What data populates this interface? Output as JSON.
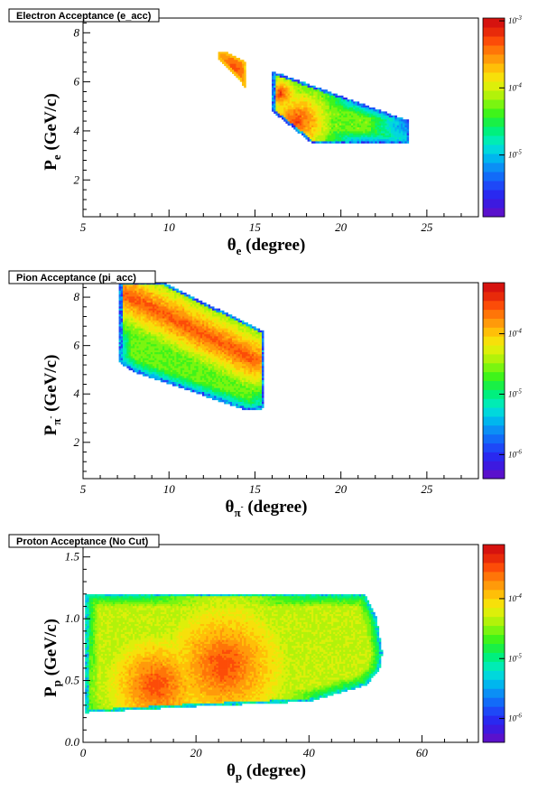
{
  "chart_data": [
    {
      "type": "heatmap",
      "title": "Electron Acceptance (e_acc)",
      "xlabel": {
        "sym": "θ",
        "sub": "e",
        "rest": " (degree)"
      },
      "ylabel": {
        "sym": "P",
        "sub": "e",
        "rest": " (GeV/c)"
      },
      "xlim": [
        5,
        28
      ],
      "ylim": [
        0.5,
        8.6
      ],
      "x_ticks": [
        {
          "v": 5,
          "label": "5"
        },
        {
          "v": 10,
          "label": "10"
        },
        {
          "v": 15,
          "label": "15"
        },
        {
          "v": 20,
          "label": "20"
        },
        {
          "v": 25,
          "label": "25"
        }
      ],
      "y_ticks": [
        {
          "v": 2,
          "label": "2"
        },
        {
          "v": 4,
          "label": "4"
        },
        {
          "v": 6,
          "label": "6"
        },
        {
          "v": 8,
          "label": "8"
        }
      ],
      "z_scale": "log",
      "zlim": [
        1.2e-06,
        0.0011
      ],
      "z_ticks": [
        {
          "v": 1e-05,
          "label": "10",
          "exp": "-5"
        },
        {
          "v": 0.0001,
          "label": "10",
          "exp": "-4"
        },
        {
          "v": 0.001,
          "label": "10",
          "exp": "-3"
        }
      ],
      "regions": [
        {
          "name": "small acceptance band",
          "polygon": [
            [
              12.8,
              7.2
            ],
            [
              13.2,
              7.25
            ],
            [
              14.5,
              6.8
            ],
            [
              14.5,
              5.7
            ],
            [
              13.8,
              6.3
            ],
            [
              12.8,
              7.0
            ]
          ],
          "peak": 0.0006,
          "floor": 0.00015,
          "hotspots": [
            {
              "x": 13.7,
              "y": 6.5,
              "r": 0.8
            }
          ]
        },
        {
          "name": "large acceptance band",
          "polygon": [
            [
              16.0,
              6.4
            ],
            [
              16.6,
              6.3
            ],
            [
              24.0,
              4.4
            ],
            [
              24.0,
              3.5
            ],
            [
              18.3,
              3.5
            ],
            [
              16.0,
              4.8
            ]
          ],
          "peak": 0.0006,
          "floor": 1.5e-06,
          "hotspots": [
            {
              "x": 17.5,
              "y": 4.4,
              "r": 2.8
            },
            {
              "x": 16.5,
              "y": 5.5,
              "r": 1.5
            }
          ],
          "fade_to": {
            "x": 24,
            "y": 4.3,
            "r": 6.5
          }
        }
      ]
    },
    {
      "type": "heatmap",
      "title": "Pion Acceptance (pi_acc)",
      "xlabel": {
        "sym": "θ",
        "sub": "π",
        "subsup": "-",
        "rest": " (degree)"
      },
      "ylabel": {
        "sym": "P",
        "sub": "π",
        "subsup": "-",
        "rest": " (GeV/c)"
      },
      "xlim": [
        5,
        28
      ],
      "ylim": [
        0.5,
        8.6
      ],
      "x_ticks": [
        {
          "v": 5,
          "label": "5"
        },
        {
          "v": 10,
          "label": "10"
        },
        {
          "v": 15,
          "label": "15"
        },
        {
          "v": 20,
          "label": "20"
        },
        {
          "v": 25,
          "label": "25"
        }
      ],
      "y_ticks": [
        {
          "v": 2,
          "label": "2"
        },
        {
          "v": 4,
          "label": "4"
        },
        {
          "v": 6,
          "label": "6"
        },
        {
          "v": 8,
          "label": "8"
        }
      ],
      "z_scale": "log",
      "zlim": [
        4e-07,
        0.0007
      ],
      "z_ticks": [
        {
          "v": 1e-06,
          "label": "10",
          "exp": "-6"
        },
        {
          "v": 1e-05,
          "label": "10",
          "exp": "-5"
        },
        {
          "v": 0.0001,
          "label": "10",
          "exp": "-4"
        }
      ],
      "regions": [
        {
          "name": "pion acceptance band",
          "polygon": [
            [
              7.1,
              8.6
            ],
            [
              9.7,
              8.6
            ],
            [
              15.5,
              6.6
            ],
            [
              15.5,
              3.4
            ],
            [
              14.6,
              3.3
            ],
            [
              8.0,
              4.9
            ],
            [
              7.1,
              5.3
            ]
          ],
          "peak": 0.0003,
          "floor": 6e-07,
          "ridge": {
            "x0": 7.5,
            "y0": 8.1,
            "x1": 15.0,
            "y1": 5.4,
            "width": 0.7
          }
        }
      ]
    },
    {
      "type": "heatmap",
      "title": "Proton Acceptance (No Cut)",
      "xlabel": {
        "sym": "θ",
        "sub": "p",
        "rest": " (degree)"
      },
      "ylabel": {
        "sym": "P",
        "sub": "p",
        "rest": " (GeV/c)"
      },
      "xlim": [
        0,
        70
      ],
      "ylim": [
        0,
        1.6
      ],
      "x_ticks": [
        {
          "v": 0,
          "label": "0"
        },
        {
          "v": 20,
          "label": "20"
        },
        {
          "v": 40,
          "label": "40"
        },
        {
          "v": 60,
          "label": "60"
        }
      ],
      "y_ticks": [
        {
          "v": 0,
          "label": "0.0"
        },
        {
          "v": 0.5,
          "label": "0.5"
        },
        {
          "v": 1.0,
          "label": "1.0"
        },
        {
          "v": 1.5,
          "label": "1.5"
        }
      ],
      "z_scale": "log",
      "zlim": [
        4e-07,
        0.0008
      ],
      "z_ticks": [
        {
          "v": 1e-06,
          "label": "10",
          "exp": "-6"
        },
        {
          "v": 1e-05,
          "label": "10",
          "exp": "-5"
        },
        {
          "v": 0.0001,
          "label": "10",
          "exp": "-4"
        }
      ],
      "regions": [
        {
          "name": "proton acceptance region",
          "polygon": [
            [
              0.5,
              1.2
            ],
            [
              50.0,
              1.2
            ],
            [
              52.0,
              1.0
            ],
            [
              53.0,
              0.72
            ],
            [
              52.5,
              0.58
            ],
            [
              50.0,
              0.46
            ],
            [
              40.0,
              0.33
            ],
            [
              20.0,
              0.29
            ],
            [
              0.5,
              0.24
            ]
          ],
          "peak": 0.0004,
          "floor": 2e-06,
          "hotspots": [
            {
              "x": 13,
              "y": 0.46,
              "r": 13
            },
            {
              "x": 25,
              "y": 0.62,
              "r": 16
            }
          ]
        }
      ]
    }
  ]
}
